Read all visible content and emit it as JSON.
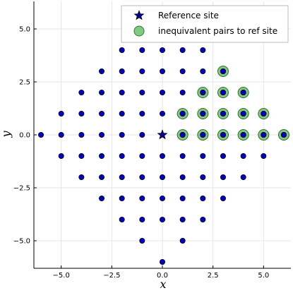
{
  "chart_data": {
    "type": "scatter",
    "xlabel": "x",
    "ylabel": "y",
    "xlim": [
      -6.35,
      6.35
    ],
    "ylim": [
      -6.3,
      6.3
    ],
    "xticks": [
      -5.0,
      -2.5,
      0.0,
      2.5,
      5.0
    ],
    "yticks": [
      -5.0,
      -2.5,
      0.0,
      2.5,
      5.0
    ],
    "xtick_labels": [
      "−5.0",
      "−2.5",
      "0.0",
      "2.5",
      "5.0"
    ],
    "ytick_labels": [
      "−5.0",
      "−2.5",
      "0.0",
      "2.5",
      "5.0"
    ],
    "grid": true,
    "legend_position": "top-right",
    "lattice_color": "#0000cc",
    "lattice": [
      [
        -2,
        4
      ],
      [
        -1,
        4
      ],
      [
        0,
        4
      ],
      [
        1,
        4
      ],
      [
        2,
        4
      ],
      [
        -3,
        3
      ],
      [
        -2,
        3
      ],
      [
        -1,
        3
      ],
      [
        0,
        3
      ],
      [
        1,
        3
      ],
      [
        2,
        3
      ],
      [
        3,
        3
      ],
      [
        -4,
        2
      ],
      [
        -3,
        2
      ],
      [
        -2,
        2
      ],
      [
        -1,
        2
      ],
      [
        0,
        2
      ],
      [
        1,
        2
      ],
      [
        2,
        2
      ],
      [
        3,
        2
      ],
      [
        4,
        2
      ],
      [
        -5,
        1
      ],
      [
        -4,
        1
      ],
      [
        -3,
        1
      ],
      [
        -2,
        1
      ],
      [
        -1,
        1
      ],
      [
        0,
        1
      ],
      [
        1,
        1
      ],
      [
        2,
        1
      ],
      [
        3,
        1
      ],
      [
        4,
        1
      ],
      [
        5,
        1
      ],
      [
        -6,
        0
      ],
      [
        -5,
        0
      ],
      [
        -4,
        0
      ],
      [
        -3,
        0
      ],
      [
        -2,
        0
      ],
      [
        -1,
        0
      ],
      [
        1,
        0
      ],
      [
        2,
        0
      ],
      [
        3,
        0
      ],
      [
        4,
        0
      ],
      [
        5,
        0
      ],
      [
        6,
        0
      ],
      [
        -5,
        -1
      ],
      [
        -4,
        -1
      ],
      [
        -3,
        -1
      ],
      [
        -2,
        -1
      ],
      [
        -1,
        -1
      ],
      [
        0,
        -1
      ],
      [
        1,
        -1
      ],
      [
        2,
        -1
      ],
      [
        3,
        -1
      ],
      [
        4,
        -1
      ],
      [
        5,
        -1
      ],
      [
        -4,
        -2
      ],
      [
        -3,
        -2
      ],
      [
        -2,
        -2
      ],
      [
        -1,
        -2
      ],
      [
        0,
        -2
      ],
      [
        1,
        -2
      ],
      [
        2,
        -2
      ],
      [
        3,
        -2
      ],
      [
        4,
        -2
      ],
      [
        -3,
        -3
      ],
      [
        -2,
        -3
      ],
      [
        -1,
        -3
      ],
      [
        0,
        -3
      ],
      [
        1,
        -3
      ],
      [
        2,
        -3
      ],
      [
        3,
        -3
      ],
      [
        -2,
        -4
      ],
      [
        -1,
        -4
      ],
      [
        0,
        -4
      ],
      [
        1,
        -4
      ],
      [
        2,
        -4
      ],
      [
        -1,
        -5
      ],
      [
        1,
        -5
      ],
      [
        0,
        -6
      ]
    ],
    "series": [
      {
        "name": "Reference site",
        "marker": "star",
        "color": "#000088",
        "points": [
          [
            0,
            0
          ]
        ]
      },
      {
        "name": "inequivalent pairs to ref site",
        "marker": "circle",
        "color": "#6cc06c",
        "points": [
          [
            3,
            3
          ],
          [
            2,
            2
          ],
          [
            3,
            2
          ],
          [
            4,
            2
          ],
          [
            1,
            1
          ],
          [
            2,
            1
          ],
          [
            3,
            1
          ],
          [
            4,
            1
          ],
          [
            5,
            1
          ],
          [
            1,
            0
          ],
          [
            2,
            0
          ],
          [
            3,
            0
          ],
          [
            4,
            0
          ],
          [
            5,
            0
          ],
          [
            6,
            0
          ]
        ]
      }
    ]
  }
}
